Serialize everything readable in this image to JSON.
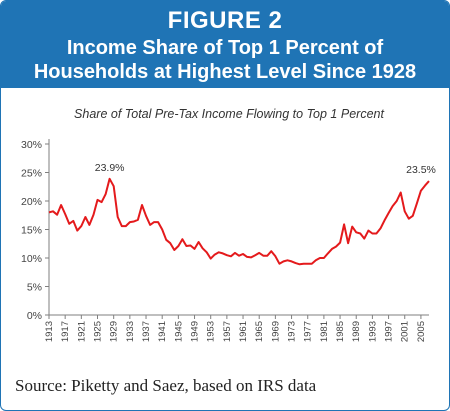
{
  "header": {
    "figure_label": "FIGURE 2",
    "title_line1": "Income Share of Top 1 Percent of",
    "title_line2": "Households at Highest Level Since 1928"
  },
  "source_text": "Source: Piketty and Saez, based on IRS data",
  "colors": {
    "header_bg": "#1f74b5",
    "line": "#e41a1c",
    "text": "#333333"
  },
  "chart_data": {
    "type": "line",
    "title": "Share of Total Pre-Tax Income Flowing to Top 1 Percent",
    "xlabel": "",
    "ylabel": "",
    "ylim": [
      0,
      30
    ],
    "yticks": [
      "0%",
      "5%",
      "10%",
      "15%",
      "20%",
      "25%",
      "30%"
    ],
    "xlim": [
      1913,
      2007
    ],
    "xticks": [
      1913,
      1917,
      1921,
      1925,
      1929,
      1933,
      1937,
      1941,
      1945,
      1949,
      1953,
      1957,
      1961,
      1965,
      1969,
      1973,
      1977,
      1981,
      1985,
      1989,
      1993,
      1997,
      2001,
      2005
    ],
    "grid": false,
    "annotations": [
      {
        "year": 1928,
        "value": 23.9,
        "text": "23.9%"
      },
      {
        "year": 2007,
        "value": 23.5,
        "text": "23.5%"
      }
    ],
    "series": [
      {
        "x": [
          1913,
          1914,
          1915,
          1916,
          1917,
          1918,
          1919,
          1920,
          1921,
          1922,
          1923,
          1924,
          1925,
          1926,
          1927,
          1928,
          1929,
          1930,
          1931,
          1932,
          1933,
          1934,
          1935,
          1936,
          1937,
          1938,
          1939,
          1940,
          1941,
          1942,
          1943,
          1944,
          1945,
          1946,
          1947,
          1948,
          1949,
          1950,
          1951,
          1952,
          1953,
          1954,
          1955,
          1956,
          1957,
          1958,
          1959,
          1960,
          1961,
          1962,
          1963,
          1964,
          1965,
          1966,
          1967,
          1968,
          1969,
          1970,
          1971,
          1972,
          1973,
          1974,
          1975,
          1976,
          1977,
          1978,
          1979,
          1980,
          1981,
          1982,
          1983,
          1984,
          1985,
          1986,
          1987,
          1988,
          1989,
          1990,
          1991,
          1992,
          1993,
          1994,
          1995,
          1996,
          1997,
          1998,
          1999,
          2000,
          2001,
          2002,
          2003,
          2004,
          2005,
          2006,
          2007
        ],
        "values": [
          18.0,
          18.2,
          17.6,
          19.3,
          17.7,
          16.0,
          16.5,
          14.8,
          15.6,
          17.2,
          15.8,
          17.6,
          20.2,
          19.8,
          21.2,
          23.9,
          22.6,
          17.2,
          15.6,
          15.6,
          16.3,
          16.4,
          16.7,
          19.3,
          17.4,
          15.8,
          16.3,
          16.3,
          15.0,
          13.2,
          12.6,
          11.4,
          12.1,
          13.3,
          12.1,
          12.2,
          11.6,
          12.8,
          11.7,
          11.0,
          9.9,
          10.6,
          11.0,
          10.8,
          10.5,
          10.3,
          10.9,
          10.4,
          10.7,
          10.2,
          10.1,
          10.5,
          10.9,
          10.4,
          10.4,
          11.2,
          10.3,
          9.0,
          9.4,
          9.6,
          9.4,
          9.1,
          8.9,
          9.0,
          9.0,
          9.0,
          9.6,
          10.0,
          10.0,
          10.8,
          11.6,
          12.0,
          12.7,
          15.9,
          12.6,
          15.5,
          14.5,
          14.3,
          13.4,
          14.8,
          14.3,
          14.3,
          15.2,
          16.6,
          17.9,
          19.1,
          20.0,
          21.5,
          18.2,
          16.9,
          17.4,
          19.6,
          21.8,
          22.7,
          23.5
        ]
      }
    ]
  }
}
